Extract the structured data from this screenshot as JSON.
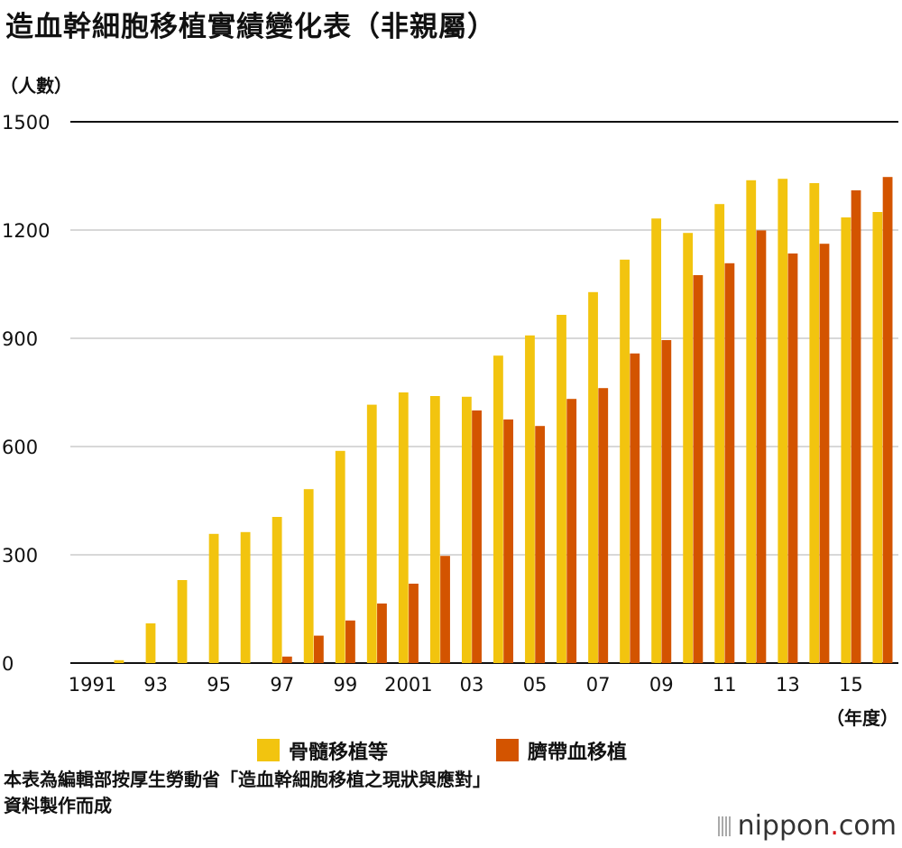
{
  "title": "造血幹細胞移植實績變化表（非親屬）",
  "footnote_line1": "本表為編輯部按厚生勞動省「造血幹細胞移植之現狀與應對」",
  "footnote_line2": "資料製作而成",
  "logo": {
    "name": "nippon",
    "suffix": "com"
  },
  "colors": {
    "bone_marrow": "#F2C40F",
    "cord_blood": "#D35400",
    "grid": "#cccccc"
  },
  "chart_data": {
    "type": "bar",
    "title": "造血幹細胞移植實績變化表（非親屬）",
    "ylabel": "（人數）",
    "xlabel": "（年度）",
    "ylim": [
      0,
      1500
    ],
    "yticks": [
      0,
      300,
      600,
      900,
      1200,
      1500
    ],
    "categories": [
      "1991",
      "1992",
      "1993",
      "1994",
      "1995",
      "1996",
      "1997",
      "1998",
      "1999",
      "2000",
      "2001",
      "2002",
      "2003",
      "2004",
      "2005",
      "2006",
      "2007",
      "2008",
      "2009",
      "2010",
      "2011",
      "2012",
      "2013",
      "2014",
      "2015",
      "2016"
    ],
    "tick_labels": [
      "1991",
      "93",
      "95",
      "97",
      "99",
      "2001",
      "03",
      "05",
      "07",
      "09",
      "11",
      "13",
      "15"
    ],
    "series": [
      {
        "name": "骨髓移植等",
        "values": [
          0,
          8,
          110,
          230,
          358,
          363,
          405,
          482,
          588,
          716,
          750,
          740,
          738,
          852,
          908,
          965,
          1028,
          1118,
          1232,
          1192,
          1272,
          1338,
          1342,
          1330,
          1235,
          1250
        ]
      },
      {
        "name": "臍帶血移植",
        "values": [
          0,
          0,
          0,
          0,
          0,
          0,
          18,
          76,
          118,
          165,
          220,
          297,
          700,
          675,
          657,
          732,
          762,
          858,
          895,
          1075,
          1108,
          1199,
          1135,
          1162,
          1310,
          1347
        ]
      }
    ],
    "legend_position": "bottom-center",
    "grid": true
  }
}
